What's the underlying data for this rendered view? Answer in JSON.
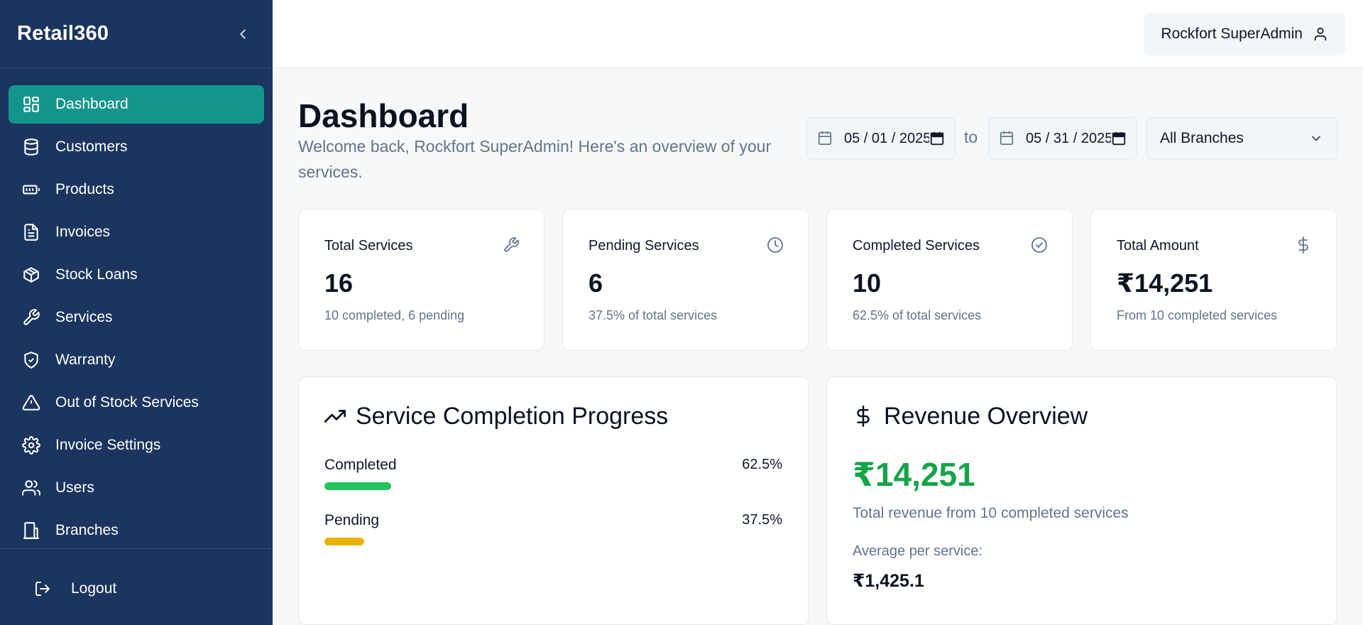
{
  "sidebar": {
    "brand": "Retail360",
    "items": [
      {
        "label": "Dashboard",
        "icon": "grid-icon",
        "active": true
      },
      {
        "label": "Customers",
        "icon": "database-icon"
      },
      {
        "label": "Products",
        "icon": "battery-icon"
      },
      {
        "label": "Invoices",
        "icon": "file-text-icon"
      },
      {
        "label": "Stock Loans",
        "icon": "package-icon"
      },
      {
        "label": "Services",
        "icon": "wrench-icon"
      },
      {
        "label": "Warranty",
        "icon": "shield-check-icon"
      },
      {
        "label": "Out of Stock Services",
        "icon": "alert-triangle-icon"
      },
      {
        "label": "Invoice Settings",
        "icon": "gear-icon"
      },
      {
        "label": "Users",
        "icon": "users-icon"
      },
      {
        "label": "Branches",
        "icon": "building-icon"
      }
    ],
    "logout": "Logout"
  },
  "header": {
    "user": "Rockfort SuperAdmin"
  },
  "page": {
    "title": "Dashboard",
    "subtitle": "Welcome back, Rockfort SuperAdmin! Here's an overview of your services.",
    "date_from": "05 / 01 / 2025",
    "to_label": "to",
    "date_to": "05 / 31 / 2025",
    "branch": "All Branches"
  },
  "stats": [
    {
      "label": "Total Services",
      "value": "16",
      "note": "10 completed, 6 pending",
      "icon": "wrench-icon"
    },
    {
      "label": "Pending Services",
      "value": "6",
      "note": "37.5% of total services",
      "icon": "clock-icon"
    },
    {
      "label": "Completed Services",
      "value": "10",
      "note": "62.5% of total services",
      "icon": "check-circle-icon"
    },
    {
      "label": "Total Amount",
      "value": "₹14,251",
      "note": "From 10 completed services",
      "icon": "dollar-icon"
    }
  ],
  "progress": {
    "title": "Service Completion Progress",
    "rows": [
      {
        "label": "Completed",
        "value": "62.5%",
        "fraction": 0.145,
        "color": "#22c55e"
      },
      {
        "label": "Pending",
        "value": "37.5%",
        "fraction": 0.087,
        "color": "#eab308"
      }
    ]
  },
  "revenue": {
    "title": "Revenue Overview",
    "amount": "₹14,251",
    "note": "Total revenue from 10 completed services",
    "avg_label": "Average per service:",
    "avg_value": "₹1,425.1"
  }
}
